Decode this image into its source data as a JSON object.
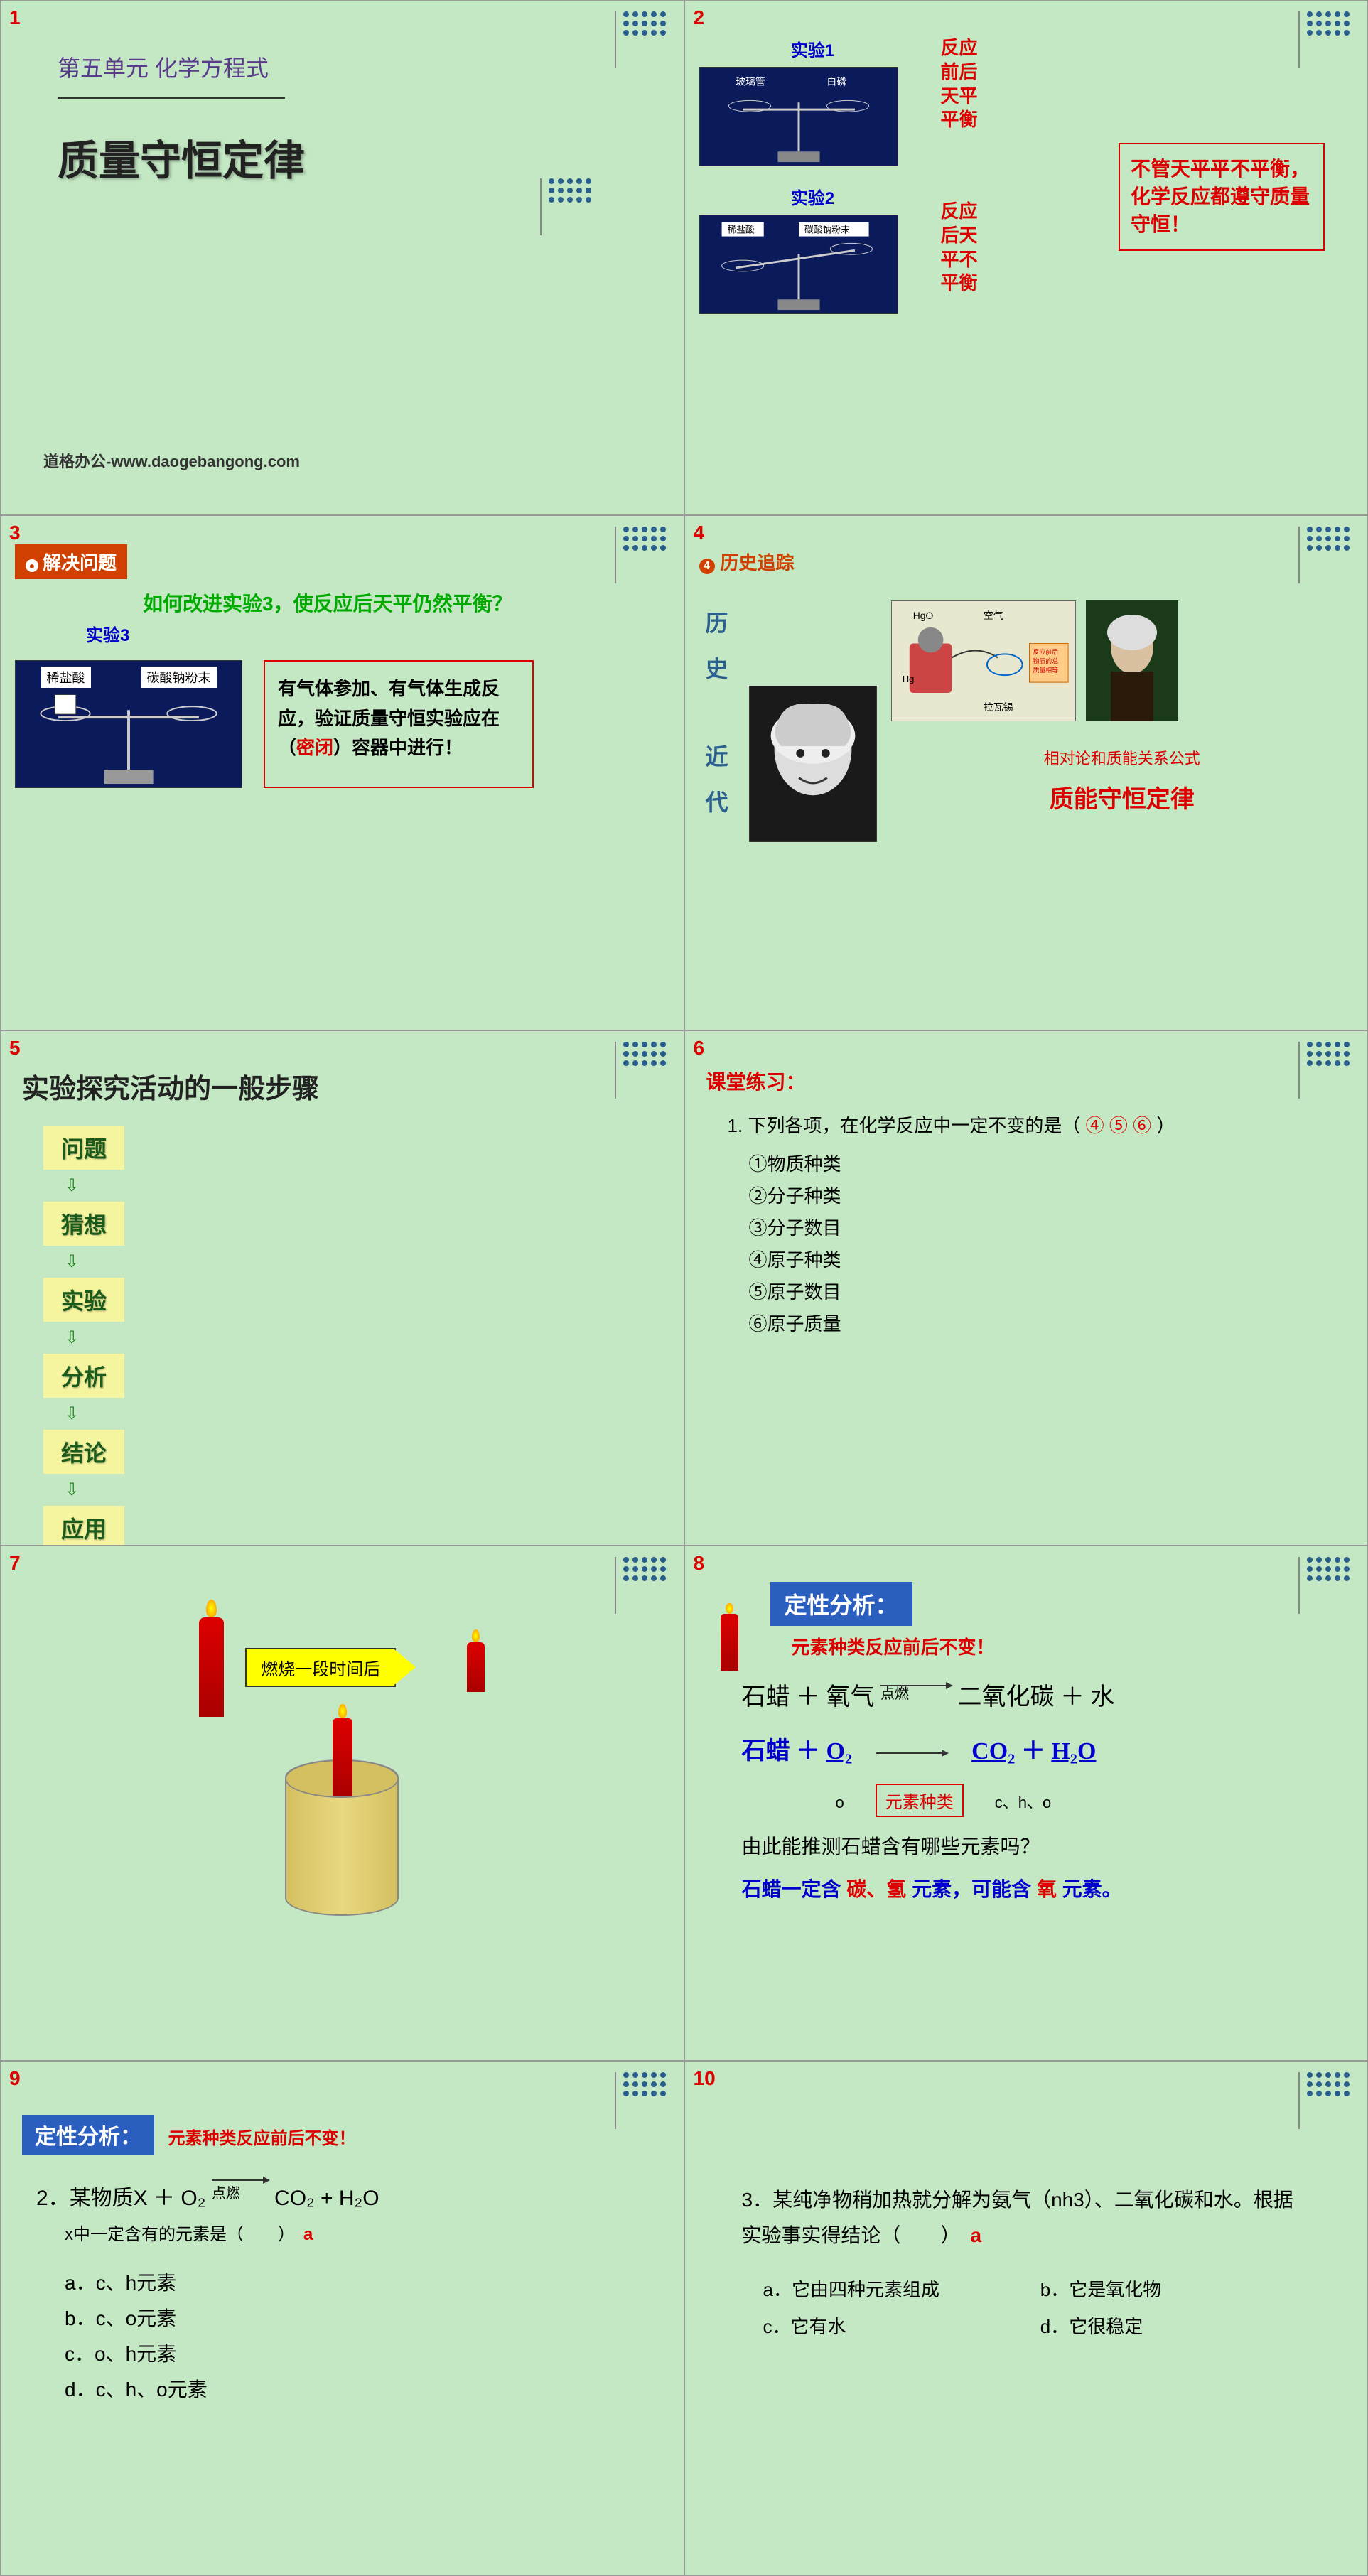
{
  "colors": {
    "bg": "#c4e8c4",
    "red": "#d00",
    "blue": "#2a5fbf",
    "navy": "#0a1a5a",
    "green": "#0a0",
    "purple": "#5a3a8a",
    "orange": "#d04000"
  },
  "s1": {
    "num": "1",
    "unit": "第五单元 化学方程式",
    "title": "质量守恒定律",
    "footer": "道格办公-www.daogebangong.com"
  },
  "s2": {
    "num": "2",
    "exp1_label": "实验1",
    "exp1_items": "玻璃管　白磷",
    "exp2_label": "实验2",
    "exp2_items": "稀盐酸　碳酸钠粉末",
    "text1": "反应前后天平平衡",
    "text2": "反应后天平不平衡",
    "box": "不管天平平不平衡，化学反应都遵守质量守恒！"
  },
  "s3": {
    "num": "3",
    "header": "解决问题",
    "question": "如何改进实验3，使反应后天平仍然平衡？",
    "exp_label": "实验3",
    "img_label1": "稀盐酸",
    "img_label2": "碳酸钠粉末",
    "box_pre": "有气体参加、有气体生成反应，验证质量守恒实验应在（",
    "box_red": "密闭",
    "box_post": "）容器中进行！"
  },
  "s4": {
    "num": "4",
    "header": "历史追踪",
    "vert1": "历史",
    "vert2": "近代",
    "diagram_labels": "HgO 空气 Hg 拉瓦锡",
    "diagram_note": "反应前后物质的总质量相等",
    "caption": "相对论和质能关系公式",
    "law": "质能守恒定律"
  },
  "s5": {
    "num": "5",
    "title": "实验探究活动的一般步骤",
    "steps": [
      "问题",
      "猜想",
      "实验",
      "分析",
      "结论",
      "应用"
    ]
  },
  "s6": {
    "num": "6",
    "title": "课堂练习：",
    "q": "1. 下列各项，在化学反应中一定不变的是（",
    "ans": "④ ⑤ ⑥",
    "q_end": "）",
    "opts": [
      "①物质种类",
      "②分子种类",
      "③分子数目",
      "④原子种类",
      "⑤原子数目",
      "⑥原子质量"
    ]
  },
  "s7": {
    "num": "7",
    "arrow": "燃烧一段时间后"
  },
  "s8": {
    "num": "8",
    "header": "定性分析：",
    "red": "元素种类反应前后不变！",
    "eq1_l": "石蜡 ＋ 氧气",
    "eq1_arrow": "点燃",
    "eq1_r": "二氧化碳 ＋ 水",
    "eq2_l": "石蜡 ＋",
    "eq2_o2": "O₂",
    "eq2_r1": "CO₂",
    "eq2_plus": "＋",
    "eq2_r2": "H₂O",
    "box": "元素种类",
    "under_o": "o",
    "under_cho": "c、h、o",
    "q": "由此能推测石蜡含有哪些元素吗？",
    "conc_pre": "石蜡一定含 ",
    "conc_ch": "碳、氢",
    "conc_mid": " 元素，可能含 ",
    "conc_o": "氧",
    "conc_post": " 元素。"
  },
  "s9": {
    "num": "9",
    "header": "定性分析：",
    "red": "元素种类反应前后不变！",
    "q_num": "2．",
    "q_pre": "某物质X ＋ O₂",
    "q_arrow": "点燃",
    "q_post": "CO₂ + H₂O",
    "sub": "x中一定含有的元素是（　　）",
    "ans": "a",
    "opts": [
      "a．c、h元素",
      "b．c、o元素",
      "c．o、h元素",
      "d．c、h、o元素"
    ]
  },
  "s10": {
    "num": "10",
    "q_pre": "3．某纯净物稍加热就分解为氨气（nh3）、二氧化碳和水。根据实验事实得结论（　　）",
    "ans": "a",
    "opts": [
      "a．它由四种元素组成",
      "b．它是氧化物",
      "c．它有水",
      "d．它很稳定"
    ]
  }
}
